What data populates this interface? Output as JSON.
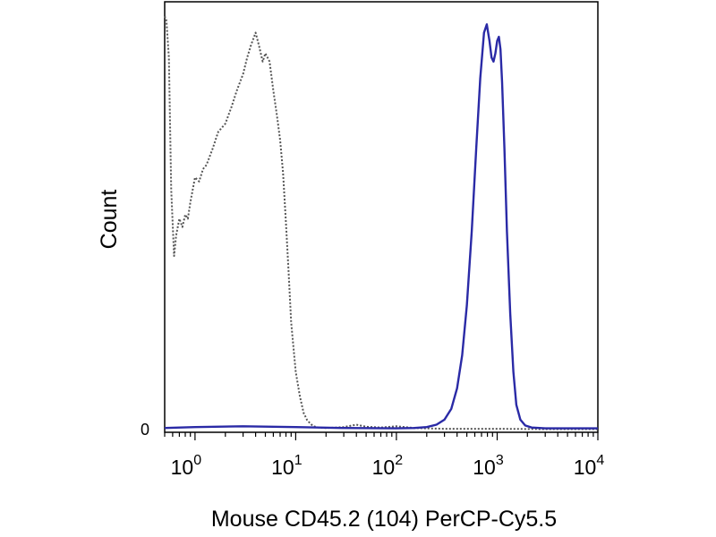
{
  "chart_data": {
    "type": "line",
    "title": "",
    "xlabel": "Mouse CD45.2 (104) PerCP-Cy5.5",
    "ylabel": "Count",
    "x_scale": "log",
    "xlim": [
      0.5,
      10000
    ],
    "ylim": [
      0,
      100
    ],
    "y_zero_label": "0",
    "x_ticks": [
      {
        "value": 1,
        "base": "10",
        "exp": "0"
      },
      {
        "value": 10,
        "base": "10",
        "exp": "1"
      },
      {
        "value": 100,
        "base": "10",
        "exp": "2"
      },
      {
        "value": 1000,
        "base": "10",
        "exp": "3"
      },
      {
        "value": 10000,
        "base": "10",
        "exp": "4"
      }
    ],
    "grid": false,
    "legend": "none",
    "series": [
      {
        "color": "#555555",
        "style": "dotted",
        "x": [
          0.5,
          0.52,
          0.55,
          0.58,
          0.62,
          0.65,
          0.7,
          0.75,
          0.8,
          0.85,
          0.9,
          1.0,
          1.1,
          1.2,
          1.3,
          1.5,
          1.7,
          2.0,
          2.3,
          2.6,
          3.0,
          3.3,
          3.6,
          4.0,
          4.3,
          4.7,
          5.0,
          5.5,
          6.0,
          6.5,
          7.0,
          7.5,
          8.0,
          8.5,
          9.0,
          10.0,
          11.0,
          12.0,
          13.0,
          14.0,
          15.0,
          17.0,
          20.0,
          25.0,
          30.0,
          40.0,
          50.0,
          70.0,
          100.0,
          150.0,
          200.0,
          300.0,
          500.0,
          1000.0,
          3000.0,
          10000.0
        ],
        "y": [
          100,
          99,
          90,
          58,
          42,
          47,
          51,
          49,
          52,
          51,
          55,
          61,
          60,
          63,
          64,
          68,
          72,
          74,
          78,
          82,
          86,
          90,
          93,
          96,
          93,
          89,
          91,
          89,
          82,
          76,
          70,
          62,
          50,
          38,
          26,
          14,
          8,
          4,
          2.3,
          1.4,
          0.8,
          0.5,
          0.4,
          0.5,
          0.6,
          1.2,
          0.7,
          0.5,
          0.8,
          0.4,
          0.3,
          0.2,
          0.2,
          0.2,
          0.1,
          0.1
        ]
      },
      {
        "color": "#2a2aa6",
        "style": "solid",
        "x": [
          0.5,
          1.0,
          3.0,
          10.0,
          30.0,
          100.0,
          150.0,
          200.0,
          250.0,
          300.0,
          350.0,
          400.0,
          450.0,
          500.0,
          560.0,
          620.0,
          680.0,
          740.0,
          790.0,
          840.0,
          880.0,
          920.0,
          960.0,
          1000.0,
          1040.0,
          1080.0,
          1120.0,
          1180.0,
          1250.0,
          1350.0,
          1450.0,
          1550.0,
          1700.0,
          1900.0,
          2200.0,
          3000.0,
          5000.0,
          10000.0
        ],
        "y": [
          0.4,
          0.6,
          0.8,
          0.6,
          0.4,
          0.3,
          0.4,
          0.6,
          1.2,
          2.4,
          5.0,
          10.0,
          18.0,
          30.0,
          48.0,
          68.0,
          85.0,
          96.0,
          98.0,
          94.0,
          90.0,
          89.0,
          91.0,
          94.0,
          95.0,
          92.0,
          84.0,
          68.0,
          48.0,
          28.0,
          14.0,
          6.0,
          2.4,
          1.0,
          0.5,
          0.3,
          0.3,
          0.3
        ]
      }
    ]
  }
}
